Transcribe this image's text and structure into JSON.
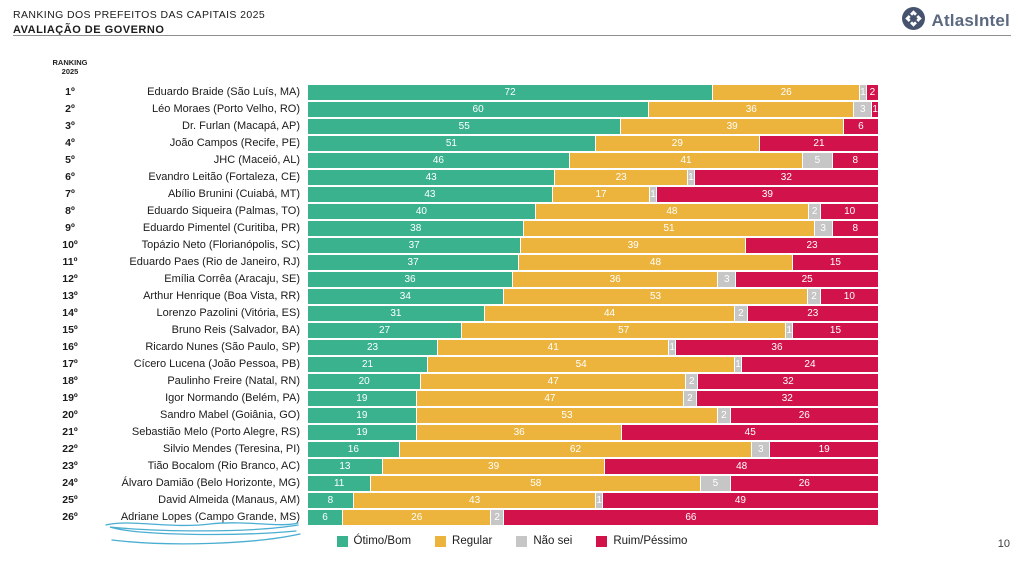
{
  "header": {
    "title_line1": "RANKING DOS PREFEITOS DAS CAPITAIS 2025",
    "title_line2": "AVALIAÇÃO DE GOVERNO",
    "brand": "AtlasIntel"
  },
  "column_header": {
    "line1": "RANKING",
    "line2": "2025"
  },
  "page_number": "10",
  "colors": {
    "otimo_bom": "#3bb28e",
    "regular": "#ecb43c",
    "nao_sei": "#c6c6c6",
    "ruim_pessimo": "#d2134b",
    "annotation_pen": "#4aaed2",
    "brand_blue": "#46536e"
  },
  "legend": [
    {
      "label": "Ótimo/Bom",
      "color": "#3bb28e"
    },
    {
      "label": "Regular",
      "color": "#ecb43c"
    },
    {
      "label": "Não sei",
      "color": "#c6c6c6"
    },
    {
      "label": "Ruim/Péssimo",
      "color": "#d2134b"
    }
  ],
  "chart_data": {
    "type": "bar",
    "orientation": "horizontal",
    "stacked": true,
    "value_unit": "percent",
    "xlim": [
      0,
      100
    ],
    "grid": false,
    "legend_position": "bottom",
    "series": [
      {
        "name": "Ótimo/Bom",
        "color": "#3bb28e"
      },
      {
        "name": "Regular",
        "color": "#ecb43c"
      },
      {
        "name": "Não sei",
        "color": "#c6c6c6"
      },
      {
        "name": "Ruim/Péssimo",
        "color": "#d2134b"
      }
    ],
    "rows": [
      {
        "rank": "1º",
        "label": "Eduardo Braide (São Luís, MA)",
        "values": [
          72,
          26,
          1,
          2
        ]
      },
      {
        "rank": "2º",
        "label": "Léo Moraes (Porto Velho, RO)",
        "values": [
          60,
          36,
          3,
          1
        ]
      },
      {
        "rank": "3º",
        "label": "Dr. Furlan (Macapá, AP)",
        "values": [
          55,
          39,
          0,
          6
        ]
      },
      {
        "rank": "4º",
        "label": "João Campos (Recife, PE)",
        "values": [
          51,
          29,
          0,
          21
        ]
      },
      {
        "rank": "5º",
        "label": "JHC (Maceió, AL)",
        "values": [
          46,
          41,
          5,
          8
        ]
      },
      {
        "rank": "6º",
        "label": "Evandro Leitão (Fortaleza, CE)",
        "values": [
          43,
          23,
          1,
          32
        ]
      },
      {
        "rank": "7º",
        "label": "Abílio Brunini (Cuiabá, MT)",
        "values": [
          43,
          17,
          1,
          39
        ]
      },
      {
        "rank": "8º",
        "label": "Eduardo Siqueira (Palmas, TO)",
        "values": [
          40,
          48,
          2,
          10
        ]
      },
      {
        "rank": "9º",
        "label": "Eduardo Pimentel (Curitiba, PR)",
        "values": [
          38,
          51,
          3,
          8
        ]
      },
      {
        "rank": "10º",
        "label": "Topázio Neto (Florianópolis, SC)",
        "values": [
          37,
          39,
          0,
          23
        ]
      },
      {
        "rank": "11º",
        "label": "Eduardo Paes (Rio de Janeiro, RJ)",
        "values": [
          37,
          48,
          0,
          15
        ]
      },
      {
        "rank": "12º",
        "label": "Emília Corrêa (Aracaju, SE)",
        "values": [
          36,
          36,
          3,
          25
        ]
      },
      {
        "rank": "13º",
        "label": "Arthur Henrique (Boa Vista, RR)",
        "values": [
          34,
          53,
          2,
          10
        ]
      },
      {
        "rank": "14º",
        "label": "Lorenzo Pazolini (Vitória, ES)",
        "values": [
          31,
          44,
          2,
          23
        ]
      },
      {
        "rank": "15º",
        "label": "Bruno Reis (Salvador, BA)",
        "values": [
          27,
          57,
          1,
          15
        ]
      },
      {
        "rank": "16º",
        "label": "Ricardo Nunes (São Paulo, SP)",
        "values": [
          23,
          41,
          1,
          36
        ]
      },
      {
        "rank": "17º",
        "label": "Cícero Lucena (João Pessoa, PB)",
        "values": [
          21,
          54,
          1,
          24
        ]
      },
      {
        "rank": "18º",
        "label": "Paulinho Freire (Natal, RN)",
        "values": [
          20,
          47,
          2,
          32
        ]
      },
      {
        "rank": "19º",
        "label": "Igor Normando (Belém, PA)",
        "values": [
          19,
          47,
          2,
          32
        ]
      },
      {
        "rank": "20º",
        "label": "Sandro Mabel (Goiânia, GO)",
        "values": [
          19,
          53,
          2,
          26
        ]
      },
      {
        "rank": "21º",
        "label": "Sebastião Melo (Porto Alegre, RS)",
        "values": [
          19,
          36,
          0,
          45
        ]
      },
      {
        "rank": "22º",
        "label": "Silvio Mendes (Teresina, PI)",
        "values": [
          16,
          62,
          3,
          19
        ]
      },
      {
        "rank": "23º",
        "label": "Tião Bocalom (Rio Branco, AC)",
        "values": [
          13,
          39,
          0,
          48
        ]
      },
      {
        "rank": "24º",
        "label": "Álvaro Damião (Belo Horizonte, MG)",
        "values": [
          11,
          58,
          5,
          26
        ]
      },
      {
        "rank": "25º",
        "label": "David Almeida (Manaus, AM)",
        "values": [
          8,
          43,
          1,
          49
        ]
      },
      {
        "rank": "26º",
        "label": "Adriane Lopes (Campo Grande, MS)",
        "values": [
          6,
          26,
          2,
          66
        ]
      }
    ],
    "annotation": {
      "type": "hand-drawn-underline",
      "target": "Adriane Lopes (Campo Grande, MS)"
    }
  }
}
